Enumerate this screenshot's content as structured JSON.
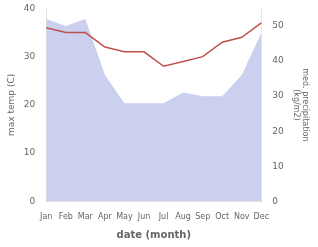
{
  "chart_data": {
    "type": "line",
    "xlabel": "date (month)",
    "ylabel": "max temp (C)",
    "y2label": "med. precipitation\n(kg/m2)",
    "categories": [
      "Jan",
      "Feb",
      "Mar",
      "Apr",
      "May",
      "Jun",
      "Jul",
      "Aug",
      "Sep",
      "Oct",
      "Nov",
      "Dec"
    ],
    "series": [
      {
        "type": "area",
        "color": "#b8c0e8",
        "axis": "y2",
        "values": [
          52,
          50,
          52,
          36,
          28,
          28,
          28,
          31,
          30,
          30,
          36,
          48
        ]
      },
      {
        "type": "line",
        "color": "#c0504d",
        "values": [
          36,
          35,
          35,
          32,
          31,
          31,
          28,
          29,
          30,
          33,
          34,
          37
        ]
      }
    ],
    "ylim": [
      0,
      40
    ],
    "yticks": [
      0,
      10,
      20,
      30,
      40
    ],
    "y2lim": [
      0,
      55
    ],
    "y2ticks": [
      0,
      10,
      20,
      30,
      40,
      50
    ],
    "grid": false
  }
}
